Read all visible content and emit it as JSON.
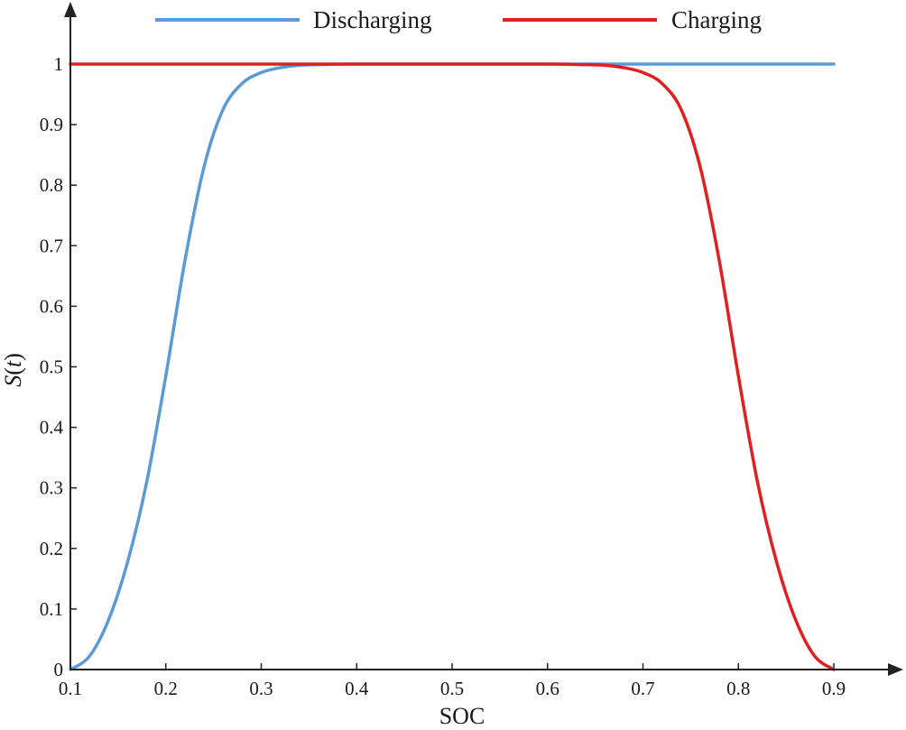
{
  "chart_data": {
    "type": "line",
    "title": "",
    "xlabel": "SOC",
    "ylabel": "S(t)",
    "xlim": [
      0.1,
      0.9
    ],
    "ylim": [
      0,
      1
    ],
    "xticks": [
      "0.1",
      "0.2",
      "0.3",
      "0.4",
      "0.5",
      "0.6",
      "0.7",
      "0.8",
      "0.9"
    ],
    "yticks": [
      "0",
      "0.1",
      "0.2",
      "0.3",
      "0.4",
      "0.5",
      "0.6",
      "0.7",
      "0.8",
      "0.9",
      "1"
    ],
    "grid": false,
    "legend_position": "top",
    "series": [
      {
        "name": "Discharging",
        "color": "#5b9bd5",
        "x": [
          0.1,
          0.12,
          0.14,
          0.16,
          0.18,
          0.2,
          0.22,
          0.24,
          0.26,
          0.28,
          0.3,
          0.32,
          0.34,
          0.36,
          0.4,
          0.5,
          0.6,
          0.7,
          0.8,
          0.9
        ],
        "y": [
          0.0,
          0.022,
          0.082,
          0.178,
          0.31,
          0.485,
          0.675,
          0.83,
          0.925,
          0.968,
          0.986,
          0.994,
          0.998,
          0.999,
          1.0,
          1.0,
          1.0,
          1.0,
          1.0,
          1.0
        ]
      },
      {
        "name": "Charging",
        "color": "#e02020",
        "x": [
          0.1,
          0.2,
          0.3,
          0.4,
          0.5,
          0.6,
          0.64,
          0.66,
          0.68,
          0.7,
          0.72,
          0.74,
          0.76,
          0.78,
          0.8,
          0.82,
          0.84,
          0.86,
          0.88,
          0.9
        ],
        "y": [
          1.0,
          1.0,
          1.0,
          1.0,
          1.0,
          1.0,
          0.999,
          0.998,
          0.994,
          0.986,
          0.968,
          0.925,
          0.83,
          0.675,
          0.485,
          0.31,
          0.178,
          0.082,
          0.022,
          0.0
        ]
      }
    ]
  }
}
